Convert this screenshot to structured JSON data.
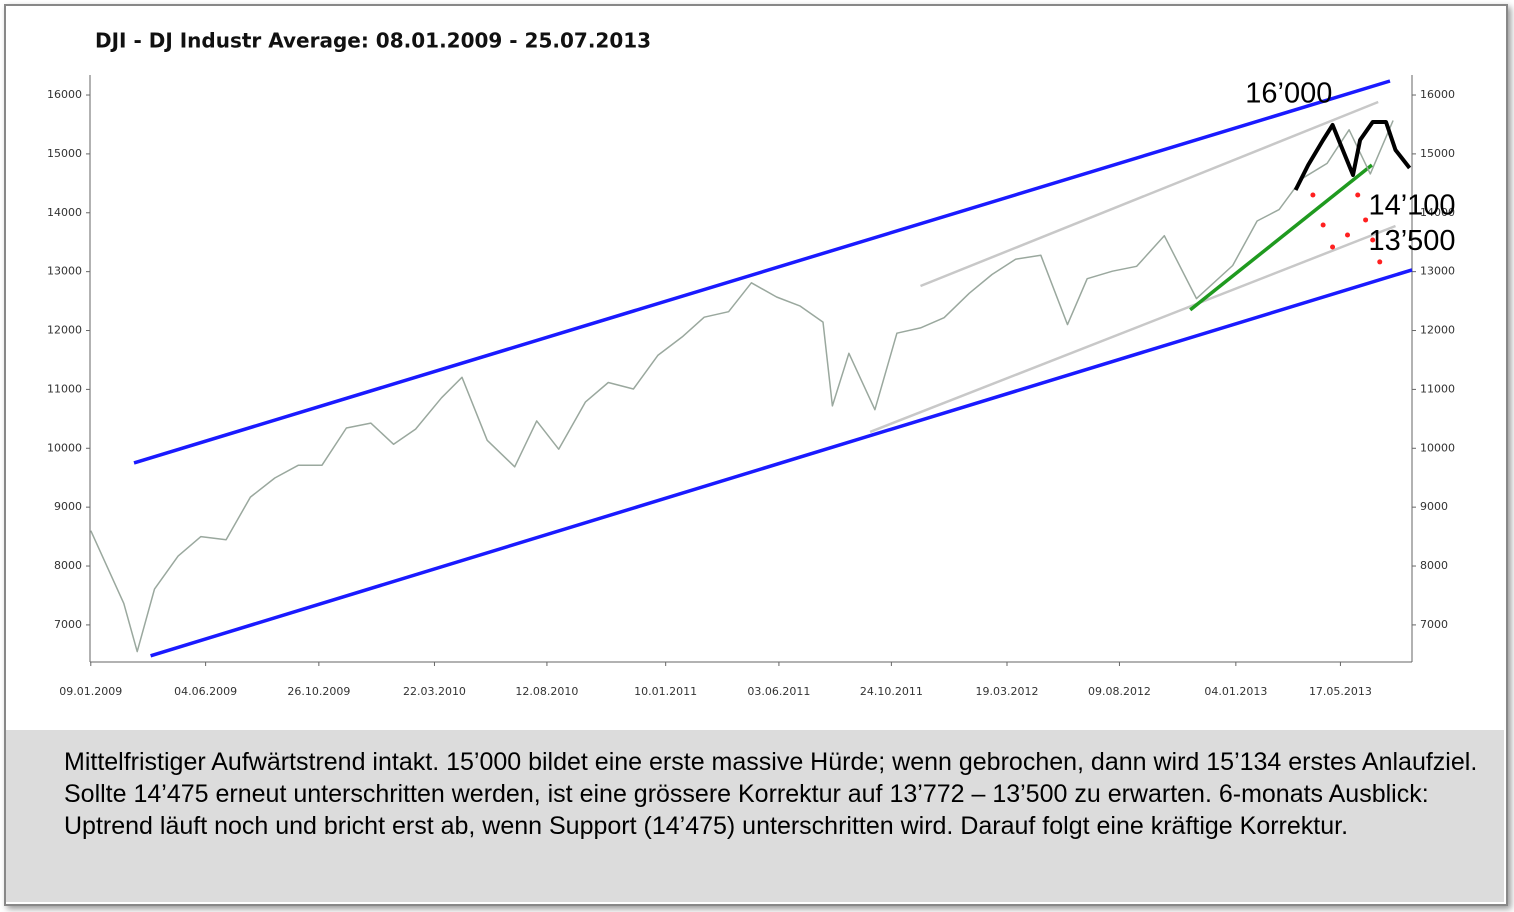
{
  "chart_data": {
    "type": "line",
    "title": "DJI - DJ Industr Average: 08.01.2009 - 25.07.2013",
    "x": [
      "09.01.2009",
      "20.02.2009",
      "09.03.2009",
      "31.03.2009",
      "30.04.2009",
      "29.05.2009",
      "30.06.2009",
      "31.07.2009",
      "31.08.2009",
      "30.09.2009",
      "30.10.2009",
      "30.11.2009",
      "31.12.2009",
      "29.01.2010",
      "26.02.2010",
      "31.03.2010",
      "26.04.2010",
      "28.05.2010",
      "02.07.2010",
      "30.07.2010",
      "27.08.2010",
      "30.09.2010",
      "29.10.2010",
      "30.11.2010",
      "31.12.2010",
      "31.01.2011",
      "28.02.2011",
      "31.03.2011",
      "29.04.2011",
      "31.05.2011",
      "30.06.2011",
      "29.07.2011",
      "10.08.2011",
      "31.08.2011",
      "03.10.2011",
      "31.10.2011",
      "30.11.2011",
      "30.12.2011",
      "31.01.2012",
      "29.02.2012",
      "30.03.2012",
      "01.05.2012",
      "04.06.2012",
      "29.06.2012",
      "31.07.2012",
      "31.08.2012",
      "05.10.2012",
      "15.11.2012",
      "31.12.2012",
      "31.01.2013",
      "28.02.2013",
      "29.03.2013",
      "30.04.2013",
      "28.05.2013",
      "24.06.2013",
      "23.07.2013"
    ],
    "values": [
      8600,
      7365,
      6547,
      7608,
      8168,
      8500,
      8447,
      9171,
      9496,
      9712,
      9712,
      10344,
      10428,
      10067,
      10325,
      10857,
      11205,
      10136,
      9686,
      10465,
      9985,
      10788,
      11118,
      11006,
      11577,
      11891,
      12226,
      12319,
      12810,
      12569,
      12414,
      12143,
      10719,
      11613,
      10655,
      11955,
      12045,
      12217,
      12632,
      12952,
      13212,
      13279,
      12101,
      12880,
      13008,
      13090,
      13610,
      12542,
      13104,
      13860,
      14054,
      14578,
      14839,
      15409,
      14660,
      15568
    ],
    "color": "#9aa89e",
    "overlay": {
      "color": "#000000",
      "x": [
        "21.03.2013",
        "06.04.2013",
        "25.04.2013",
        "07.05.2013",
        "20.05.2013",
        "02.06.2013",
        "11.06.2013",
        "27.06.2013",
        "14.07.2013",
        "26.07.2013",
        "13.08.2013"
      ],
      "values": [
        14387,
        14812,
        15236,
        15491,
        15066,
        14642,
        15236,
        15542,
        15542,
        15066,
        14761
      ]
    },
    "dots": {
      "color": "#ff2020",
      "x": [
        "12.04.2013",
        "25.04.2013",
        "07.05.2013",
        "26.05.2013",
        "08.06.2013",
        "18.06.2013",
        "27.06.2013",
        "06.07.2013"
      ],
      "values": [
        14302,
        13793,
        13419,
        13623,
        14302,
        13878,
        13538,
        13165
      ]
    },
    "trend_lines": [
      {
        "color": "#1a1aff",
        "x": [
          "05.03.2009",
          "19.07.2013"
        ],
        "values": [
          9752,
          16238
        ]
      },
      {
        "color": "#1a1aff",
        "x": [
          "26.03.2009",
          "16.08.2013"
        ],
        "values": [
          6475,
          13029
        ]
      },
      {
        "color": "#c8c8c8",
        "x": [
          "30.11.2011",
          "04.07.2013"
        ],
        "values": [
          12757,
          15881
        ]
      },
      {
        "color": "#c8c8c8",
        "x": [
          "27.09.2011",
          "26.07.2013"
        ],
        "values": [
          10279,
          13776
        ]
      },
      {
        "color": "#1f9a1f",
        "x": [
          "07.11.2012",
          "26.06.2013"
        ],
        "values": [
          12350,
          14812
        ]
      }
    ],
    "xlim": [
      "08.01.2009",
      "16.08.2013"
    ],
    "xticks": [
      "09.01.2009",
      "04.06.2009",
      "26.10.2009",
      "22.03.2010",
      "12.08.2010",
      "10.01.2011",
      "03.06.2011",
      "24.10.2011",
      "19.03.2012",
      "09.08.2012",
      "04.01.2013",
      "17.05.2013"
    ],
    "ylim": [
      6370,
      16340
    ],
    "yticks": [
      7000,
      8000,
      9000,
      10000,
      11000,
      12000,
      13000,
      14000,
      15000,
      16000
    ],
    "annotations": [
      {
        "text": "16’000",
        "x": "16.01.2013",
        "y": 16000
      },
      {
        "text": "14’100",
        "x": "16.08.2013",
        "y": 14100
      },
      {
        "text": "13’500",
        "x": "16.08.2013",
        "y": 13500
      }
    ],
    "caption": "Mittelfristiger Aufwärtstrend intakt. 15’000 bildet eine erste massive Hürde; wenn gebrochen, dann wird 15’134 erstes Anlaufziel. Sollte 14’475 erneut unterschritten werden, ist eine grössere Korrektur auf 13’772 – 13’500 zu erwarten. 6-monats Ausblick: Uptrend läuft noch und bricht erst ab, wenn Support (14’475) unterschritten wird. Darauf folgt eine kräftige Korrektur."
  }
}
